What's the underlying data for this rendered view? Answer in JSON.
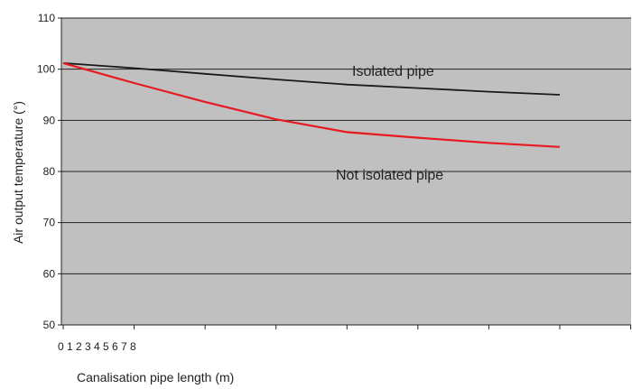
{
  "chart_data": {
    "type": "line",
    "title": "",
    "xlabel": "Canalisation pipe length (m)",
    "ylabel": "Air output temperature (°)",
    "ylim": [
      50,
      110
    ],
    "yticks": [
      50,
      60,
      70,
      80,
      90,
      100,
      110
    ],
    "xlim": [
      0,
      80
    ],
    "xtick_labels": [
      "0",
      "1",
      "2",
      "3",
      "4",
      "5",
      "6",
      "7",
      "8"
    ],
    "grid": true,
    "plot_background": "#c0c0c0",
    "series": [
      {
        "name": "Isolated pipe",
        "color": "#1a1a1a",
        "x": [
          0,
          10,
          20,
          30,
          40,
          50,
          60,
          70
        ],
        "y": [
          101.2,
          100.2,
          99.1,
          98.0,
          97.0,
          96.3,
          95.6,
          95.0
        ]
      },
      {
        "name": "Not isolated pipe",
        "color": "#e8191f",
        "x": [
          0,
          10,
          20,
          30,
          40,
          50,
          60,
          70
        ],
        "y": [
          101.2,
          97.3,
          93.6,
          90.2,
          87.7,
          86.6,
          85.6,
          84.8
        ]
      }
    ]
  }
}
